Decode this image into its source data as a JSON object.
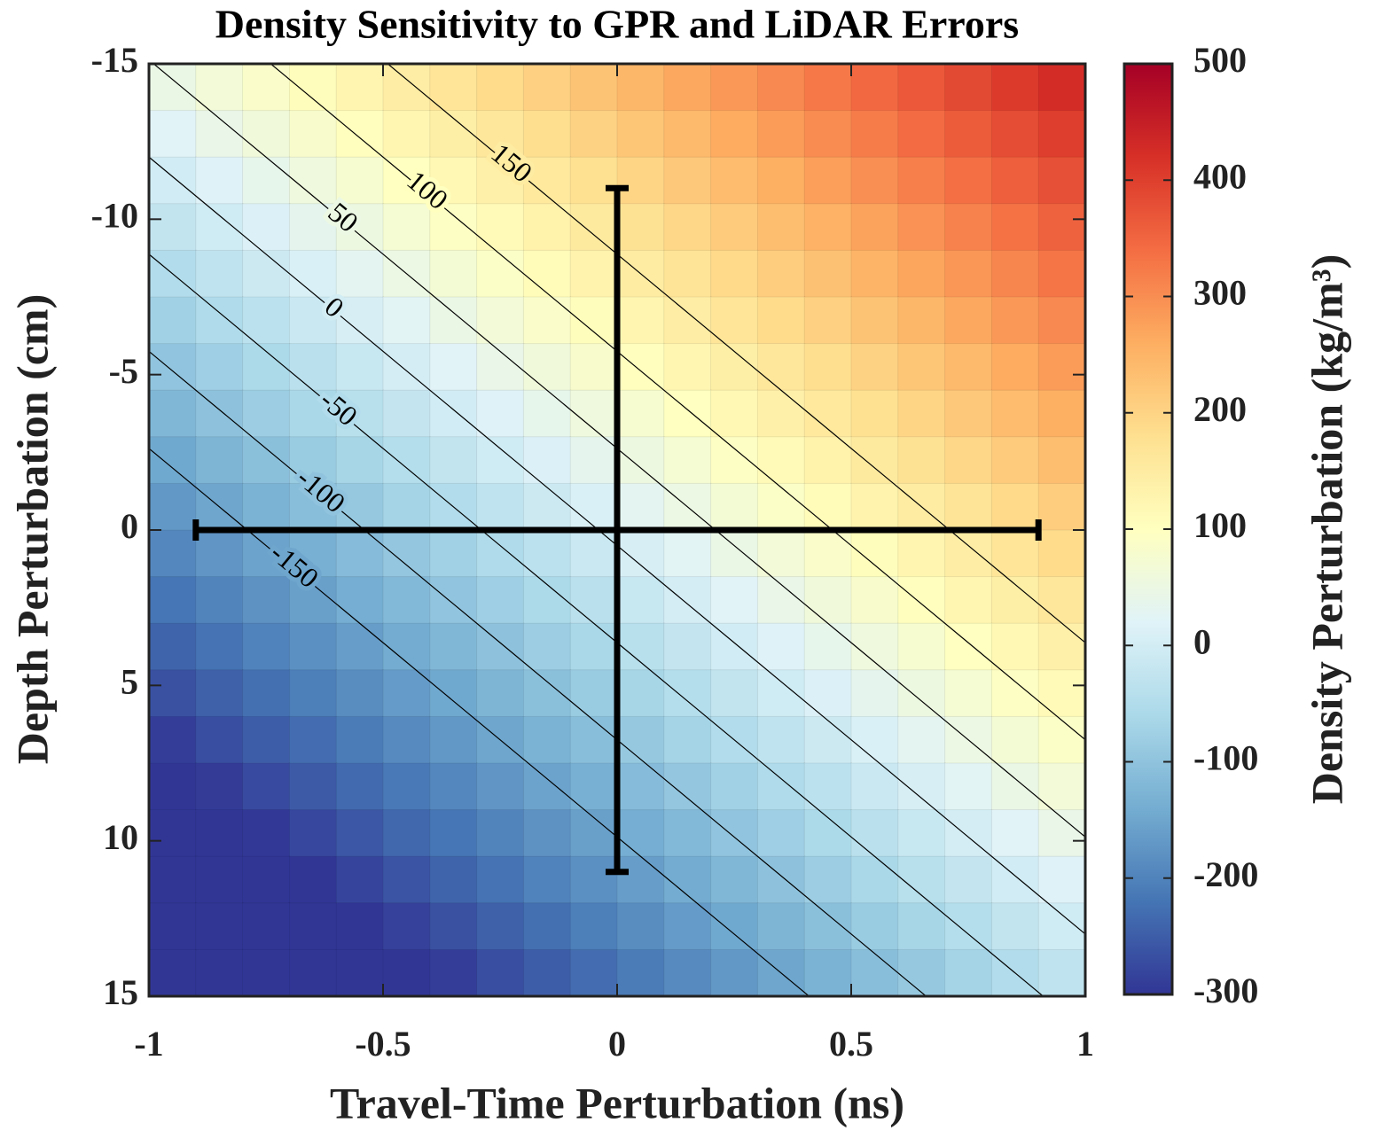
{
  "chart_data": {
    "type": "heatmap",
    "title": "Density Sensitivity to GPR and LiDAR Errors",
    "xlabel": "Travel-Time Perturbation (ns)",
    "ylabel": "Depth Perturbation (cm)",
    "x": [
      -0.95,
      -0.85,
      -0.75,
      -0.65,
      -0.55,
      -0.45,
      -0.35,
      -0.25,
      -0.15,
      -0.05,
      0.05,
      0.15,
      0.25,
      0.35,
      0.45,
      0.55,
      0.65,
      0.75,
      0.85,
      0.95
    ],
    "y": [
      -14.25,
      -12.75,
      -11.25,
      -9.75,
      -8.25,
      -6.75,
      -5.25,
      -3.75,
      -2.25,
      -0.75,
      0.75,
      2.25,
      3.75,
      5.25,
      6.75,
      8.25,
      9.75,
      11.25,
      12.75,
      14.25
    ],
    "z": [
      [
        46,
        66,
        86,
        106,
        126,
        146,
        166,
        186,
        206,
        226,
        246,
        266,
        286,
        306,
        326,
        346,
        366,
        386,
        406,
        426
      ],
      [
        22,
        42,
        62,
        82,
        102,
        122,
        142,
        162,
        182,
        202,
        222,
        242,
        262,
        282,
        302,
        322,
        342,
        362,
        382,
        402
      ],
      [
        -2,
        18,
        38,
        58,
        78,
        98,
        118,
        138,
        158,
        178,
        198,
        218,
        238,
        258,
        278,
        298,
        318,
        338,
        358,
        378
      ],
      [
        -26,
        -6,
        14,
        34,
        54,
        74,
        94,
        114,
        134,
        154,
        174,
        194,
        214,
        234,
        254,
        274,
        294,
        314,
        334,
        354
      ],
      [
        -50,
        -30,
        -10,
        10,
        30,
        50,
        70,
        90,
        110,
        130,
        150,
        170,
        190,
        210,
        230,
        250,
        270,
        290,
        310,
        330
      ],
      [
        -74,
        -54,
        -34,
        -14,
        6,
        26,
        46,
        66,
        86,
        106,
        126,
        146,
        166,
        186,
        206,
        226,
        246,
        266,
        286,
        306
      ],
      [
        -98,
        -78,
        -58,
        -38,
        -18,
        2,
        22,
        42,
        62,
        82,
        102,
        122,
        142,
        162,
        182,
        202,
        222,
        242,
        262,
        282
      ],
      [
        -122,
        -102,
        -82,
        -62,
        -42,
        -22,
        -2,
        18,
        38,
        58,
        78,
        98,
        118,
        138,
        158,
        178,
        198,
        218,
        238,
        258
      ],
      [
        -146,
        -126,
        -106,
        -86,
        -66,
        -46,
        -26,
        -6,
        14,
        34,
        54,
        74,
        94,
        114,
        134,
        154,
        174,
        194,
        214,
        234
      ],
      [
        -170,
        -150,
        -130,
        -110,
        -90,
        -70,
        -50,
        -30,
        -10,
        10,
        30,
        50,
        70,
        90,
        110,
        130,
        150,
        170,
        190,
        210
      ],
      [
        -194,
        -174,
        -154,
        -134,
        -114,
        -94,
        -74,
        -54,
        -34,
        -14,
        6,
        26,
        46,
        66,
        86,
        106,
        126,
        146,
        166,
        186
      ],
      [
        -218,
        -198,
        -178,
        -158,
        -138,
        -118,
        -98,
        -78,
        -58,
        -38,
        -18,
        2,
        22,
        42,
        62,
        82,
        102,
        122,
        142,
        162
      ],
      [
        -242,
        -222,
        -202,
        -182,
        -162,
        -142,
        -122,
        -102,
        -82,
        -62,
        -42,
        -22,
        -2,
        18,
        38,
        58,
        78,
        98,
        118,
        138
      ],
      [
        -266,
        -246,
        -226,
        -206,
        -186,
        -166,
        -146,
        -126,
        -106,
        -86,
        -66,
        -46,
        -26,
        -6,
        14,
        34,
        54,
        74,
        94,
        114
      ],
      [
        -290,
        -270,
        -250,
        -230,
        -210,
        -190,
        -170,
        -150,
        -130,
        -110,
        -90,
        -70,
        -50,
        -30,
        -10,
        10,
        30,
        50,
        70,
        90
      ],
      [
        -314,
        -294,
        -274,
        -254,
        -234,
        -214,
        -194,
        -174,
        -154,
        -134,
        -114,
        -94,
        -74,
        -54,
        -34,
        -14,
        6,
        26,
        46,
        66
      ],
      [
        -338,
        -318,
        -298,
        -278,
        -258,
        -238,
        -218,
        -198,
        -178,
        -158,
        -138,
        -118,
        -98,
        -78,
        -58,
        -38,
        -18,
        2,
        22,
        42
      ],
      [
        -362,
        -342,
        -322,
        -302,
        -282,
        -262,
        -242,
        -222,
        -202,
        -182,
        -162,
        -142,
        -122,
        -102,
        -82,
        -62,
        -42,
        -22,
        -2,
        18
      ],
      [
        -386,
        -366,
        -346,
        -326,
        -306,
        -286,
        -266,
        -246,
        -226,
        -206,
        -186,
        -166,
        -146,
        -126,
        -106,
        -86,
        -66,
        -46,
        -26,
        -6
      ],
      [
        -410,
        -390,
        -370,
        -350,
        -330,
        -310,
        -290,
        -270,
        -250,
        -230,
        -210,
        -190,
        -170,
        -150,
        -130,
        -110,
        -90,
        -70,
        -50,
        -30
      ]
    ],
    "xlim": [
      -1,
      1
    ],
    "ylim": [
      15,
      -15
    ],
    "xticks": [
      -1,
      -0.5,
      0,
      0.5,
      1
    ],
    "yticks": [
      -15,
      -10,
      -5,
      0,
      5,
      10,
      15
    ],
    "colormap": [
      "#313695",
      "#4575b4",
      "#74add1",
      "#abd9e9",
      "#e0f3f8",
      "#ffffbf",
      "#fee090",
      "#fdae61",
      "#f46d43",
      "#d73027",
      "#a50026"
    ],
    "colorbar": {
      "label": "Density Perturbation (kg/m³)",
      "clim": [
        -300,
        500
      ],
      "ticks": [
        -300,
        -200,
        -100,
        0,
        100,
        200,
        300,
        400,
        500
      ]
    },
    "contour_levels": [
      -150,
      -100,
      -50,
      0,
      50,
      100,
      150
    ],
    "errorbar": {
      "x": 0,
      "y": 0,
      "xerr": 0.9,
      "yerr": 11
    }
  }
}
